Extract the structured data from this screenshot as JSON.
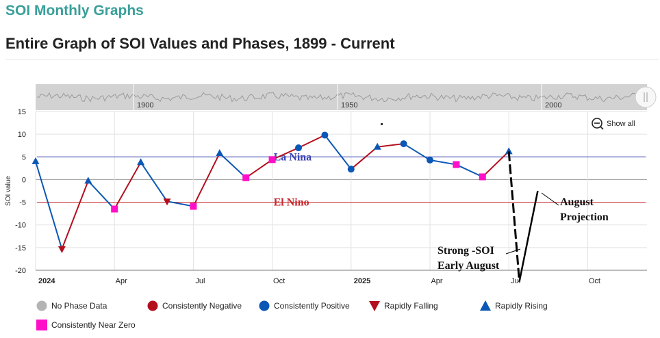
{
  "site_title": "SOI Monthly Graphs",
  "page_title": "Entire Graph of SOI Values and Phases, 1899 - Current",
  "colors": {
    "no_phase": "#b4b4b4",
    "negative": "#b40f1e",
    "positive": "#0b57b5",
    "near_zero": "#ff10c8",
    "la_nina_line": "#3c46b4",
    "el_nino_line": "#c8282d",
    "annotation": "#000000"
  },
  "navigator": {
    "labels": [
      "1900",
      "1950",
      "2000"
    ]
  },
  "controls": {
    "show_all": "Show all",
    "zoom_icon": "zoom-out-icon"
  },
  "chart_data": {
    "type": "line",
    "ylabel": "SOI value",
    "ylim": [
      -20,
      15
    ],
    "yticks": [
      "15",
      "10",
      "5",
      "0",
      "-5",
      "-10",
      "-15",
      "-20"
    ],
    "grid": true,
    "x_tick_labels": [
      {
        "label": "2024",
        "t": 0,
        "bold": true
      },
      {
        "label": "Apr",
        "t": 3
      },
      {
        "label": "Jul",
        "t": 6
      },
      {
        "label": "Oct",
        "t": 9
      },
      {
        "label": "2025",
        "t": 12,
        "bold": true
      },
      {
        "label": "Apr",
        "t": 15
      },
      {
        "label": "Jul",
        "t": 18
      },
      {
        "label": "Oct",
        "t": 21
      }
    ],
    "xlim": [
      0,
      23.4
    ],
    "series": [
      {
        "points": [
          {
            "month": "2024-01",
            "t": 0,
            "value": 4,
            "phase": "rising"
          },
          {
            "month": "2024-02",
            "t": 1,
            "value": -15.3,
            "phase": "falling"
          },
          {
            "month": "2024-03",
            "t": 2,
            "value": -0.3,
            "phase": "rising"
          },
          {
            "month": "2024-04",
            "t": 3,
            "value": -6.5,
            "phase": "near_zero"
          },
          {
            "month": "2024-05",
            "t": 4,
            "value": 3.8,
            "phase": "rising"
          },
          {
            "month": "2024-06",
            "t": 5,
            "value": -4.8,
            "phase": "falling"
          },
          {
            "month": "2024-07",
            "t": 6,
            "value": -5.9,
            "phase": "near_zero"
          },
          {
            "month": "2024-08",
            "t": 7,
            "value": 5.8,
            "phase": "rising"
          },
          {
            "month": "2024-09",
            "t": 8,
            "value": 0.4,
            "phase": "near_zero"
          },
          {
            "month": "2024-10",
            "t": 9,
            "value": 4.4,
            "phase": "near_zero"
          },
          {
            "month": "2024-11",
            "t": 10,
            "value": 7,
            "phase": "positive"
          },
          {
            "month": "2024-12",
            "t": 11,
            "value": 9.8,
            "phase": "positive"
          },
          {
            "month": "2025-01",
            "t": 12,
            "value": 2.3,
            "phase": "positive"
          },
          {
            "month": "2025-02",
            "t": 13,
            "value": 7.2,
            "phase": "rising"
          },
          {
            "month": "2025-03",
            "t": 14,
            "value": 7.9,
            "phase": "positive"
          },
          {
            "month": "2025-04",
            "t": 15,
            "value": 4.3,
            "phase": "positive"
          },
          {
            "month": "2025-05",
            "t": 16,
            "value": 3.3,
            "phase": "near_zero"
          },
          {
            "month": "2025-06",
            "t": 17,
            "value": 0.6,
            "phase": "near_zero"
          },
          {
            "month": "2025-07",
            "t": 18,
            "value": 6.2,
            "phase": "rising"
          }
        ]
      }
    ],
    "thresholds": [
      {
        "name": "La Nina",
        "value": 5,
        "color": "#3c46b4",
        "label_t": 9
      },
      {
        "name": "El Nino",
        "value": -5,
        "color": "#c8282d",
        "label_t": 9
      }
    ],
    "annotations": [
      {
        "id": "august-projection",
        "lines": [
          "August",
          "Projection"
        ]
      },
      {
        "id": "strong-soi",
        "lines": [
          "Strong -SOI",
          "Early August"
        ]
      }
    ],
    "projection": {
      "from": {
        "t": 18,
        "value": 6.2
      },
      "low": {
        "t": 18.4,
        "value": -22.5
      },
      "to": {
        "t": 19.1,
        "value": -2.5
      }
    },
    "legend": [
      {
        "id": "no-phase",
        "label": "No Phase Data",
        "marker": "circle",
        "color": "#b4b4b4"
      },
      {
        "id": "negative",
        "label": "Consistently Negative",
        "marker": "circle",
        "color": "#b40f1e"
      },
      {
        "id": "positive",
        "label": "Consistently Positive",
        "marker": "circle",
        "color": "#0b57b5"
      },
      {
        "id": "falling",
        "label": "Rapidly Falling",
        "marker": "triangle-down",
        "color": "#b40f1e"
      },
      {
        "id": "rising",
        "label": "Rapidly Rising",
        "marker": "triangle-up",
        "color": "#0b57b5"
      },
      {
        "id": "near-zero",
        "label": "Consistently Near Zero",
        "marker": "square",
        "color": "#ff10c8"
      }
    ]
  }
}
